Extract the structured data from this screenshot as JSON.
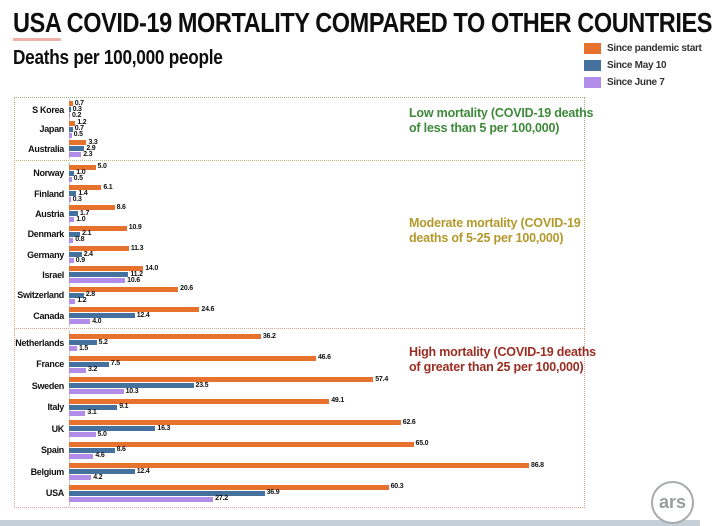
{
  "header": {
    "title_prefix": "USA",
    "title_rest": " COVID-19 MORTALITY COMPARED TO OTHER COUNTRIES",
    "subtitle": "Deaths per 100,000 people"
  },
  "legend": [
    {
      "label": "Since pandemic start",
      "color": "#E7722E"
    },
    {
      "label": "Since May 10",
      "color": "#44719E"
    },
    {
      "label": "Since June 7",
      "color": "#B18CE8"
    }
  ],
  "footer": {
    "logo_text": "ars"
  },
  "chart_data": {
    "type": "bar",
    "orientation": "horizontal",
    "title": "USA COVID-19 MORTALITY COMPARED TO OTHER COUNTRIES",
    "subtitle": "Deaths per 100,000 people",
    "unit": "deaths per 100,000 people",
    "xlim": [
      0,
      90
    ],
    "grid": false,
    "legend_position": "top-right",
    "value_labels": true,
    "series_names": [
      "Since pandemic start",
      "Since May 10",
      "Since June 7"
    ],
    "series_colors": [
      "#E7722E",
      "#44719E",
      "#B18CE8"
    ],
    "sections": [
      {
        "id": "low",
        "annotation_lines": [
          "Low mortality (COVID-19 deaths",
          "of less than 5 per 100,000)"
        ],
        "annotation_color": "#3E8A3A",
        "border_color": "#9cb37f",
        "countries": [
          {
            "name": "S Korea",
            "values": [
              "0.7",
              "0.3",
              "0.2"
            ]
          },
          {
            "name": "Japan",
            "values": [
              "1.2",
              "0.7",
              "0.5"
            ]
          },
          {
            "name": "Australia",
            "values": [
              "3.3",
              "2.9",
              "2.3"
            ]
          }
        ]
      },
      {
        "id": "moderate",
        "annotation_lines": [
          "Moderate mortality (COVID-19",
          "deaths of 5-25 per 100,000)"
        ],
        "annotation_color": "#B3992B",
        "border_color": "#c4b378",
        "countries": [
          {
            "name": "Norway",
            "values": [
              "5.0",
              "1.0",
              "0.5"
            ]
          },
          {
            "name": "Finland",
            "values": [
              "6.1",
              "1.4",
              "0.3"
            ]
          },
          {
            "name": "Austria",
            "values": [
              "8.6",
              "1.7",
              "1.0"
            ]
          },
          {
            "name": "Denmark",
            "values": [
              "10.9",
              "2.1",
              "0.8"
            ]
          },
          {
            "name": "Germany",
            "values": [
              "11.3",
              "2.4",
              "0.9"
            ]
          },
          {
            "name": "Israel",
            "values": [
              "14.0",
              "11.2",
              "10.6"
            ]
          },
          {
            "name": "Switzerland",
            "values": [
              "20.6",
              "2.8",
              "1.2"
            ]
          },
          {
            "name": "Canada",
            "values": [
              "24.6",
              "12.4",
              "4.0"
            ]
          }
        ]
      },
      {
        "id": "high",
        "annotation_lines": [
          "High mortality (COVID-19 deaths",
          "of greater than 25 per 100,000)"
        ],
        "annotation_color": "#9B2D22",
        "border_color": "#dba091",
        "countries": [
          {
            "name": "Netherlands",
            "values": [
              "36.2",
              "5.2",
              "1.5"
            ]
          },
          {
            "name": "France",
            "values": [
              "46.6",
              "7.5",
              "3.2"
            ]
          },
          {
            "name": "Sweden",
            "values": [
              "57.4",
              "23.5",
              "10.3"
            ]
          },
          {
            "name": "Italy",
            "values": [
              "49.1",
              "9.1",
              "3.1"
            ]
          },
          {
            "name": "UK",
            "values": [
              "62.6",
              "16.3",
              "5.0"
            ]
          },
          {
            "name": "Spain",
            "values": [
              "65.0",
              "8.6",
              "4.6"
            ]
          },
          {
            "name": "Belgium",
            "values": [
              "86.8",
              "12.4",
              "4.2"
            ]
          },
          {
            "name": "USA",
            "values": [
              "60.3",
              "36.9",
              "27.2"
            ]
          }
        ]
      }
    ]
  }
}
